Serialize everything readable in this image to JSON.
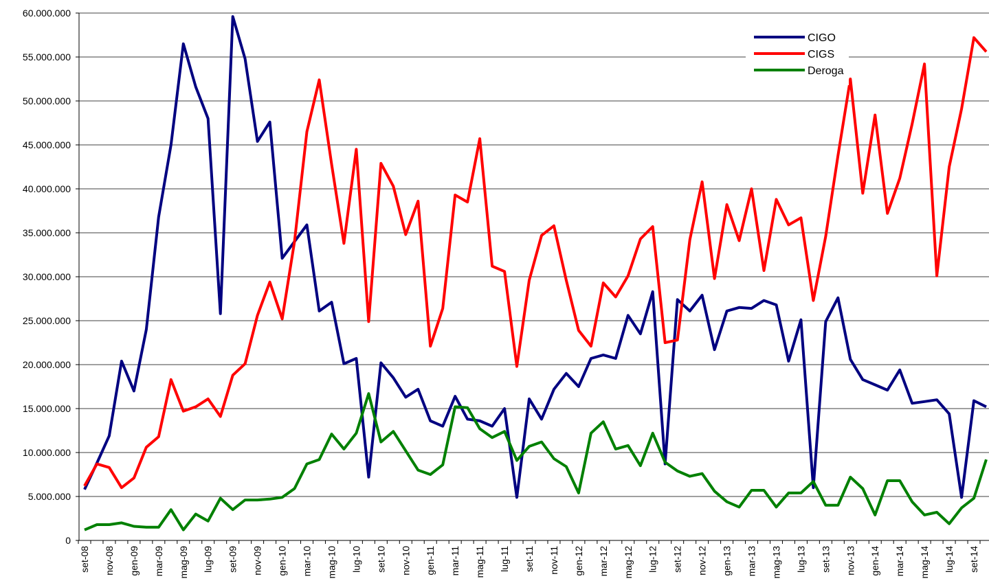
{
  "chart_data": {
    "type": "line",
    "categories": [
      "set-08",
      null,
      "nov-08",
      null,
      "gen-09",
      null,
      "mar-09",
      null,
      "mag-09",
      null,
      "lug-09",
      null,
      "set-09",
      null,
      "nov-09",
      null,
      "gen-10",
      null,
      "mar-10",
      null,
      "mag-10",
      null,
      "lug-10",
      null,
      "set-10",
      null,
      "nov-10",
      null,
      "gen-11",
      null,
      "mar-11",
      null,
      "mag-11",
      null,
      "lug-11",
      null,
      "set-11",
      null,
      "nov-11",
      null,
      "gen-12",
      null,
      "mar-12",
      null,
      "mag-12",
      null,
      "lug-12",
      null,
      "set-12",
      null,
      "nov-12",
      null,
      "gen-13",
      null,
      "mar-13",
      null,
      "mag-13",
      null,
      "lug-13",
      null,
      "set-13",
      null,
      "nov-13",
      null,
      "gen-14",
      null,
      "mar-14",
      null,
      "mag-14",
      null,
      "lug-14",
      null,
      "set-14",
      null
    ],
    "series": [
      {
        "name": "CIGO",
        "color": "#000080",
        "values": [
          5800000,
          8800000,
          11900000,
          20400000,
          17000000,
          24000000,
          36800000,
          45000000,
          56500000,
          51600000,
          48000000,
          25800000,
          59600000,
          54800000,
          45400000,
          47600000,
          32100000,
          34000000,
          35900000,
          26100000,
          27100000,
          20100000,
          20700000,
          7200000,
          20200000,
          18500000,
          16300000,
          17200000,
          13600000,
          13000000,
          16400000,
          13800000,
          13600000,
          13000000,
          15000000,
          4900000,
          16100000,
          13800000,
          17200000,
          19000000,
          17500000,
          20700000,
          21100000,
          20700000,
          25600000,
          23500000,
          28300000,
          8700000,
          27400000,
          26100000,
          27900000,
          21700000,
          26100000,
          26500000,
          26400000,
          27300000,
          26800000,
          20400000,
          25100000,
          6000000,
          24900000,
          27600000,
          20600000,
          18300000,
          17700000,
          17100000,
          19400000,
          15600000,
          15800000,
          16000000,
          14400000,
          4900000,
          15900000,
          15200000
        ]
      },
      {
        "name": "CIGS",
        "color": "#ff0000",
        "values": [
          6200000,
          8700000,
          8300000,
          6000000,
          7100000,
          10600000,
          11800000,
          18300000,
          14700000,
          15200000,
          16100000,
          14100000,
          18800000,
          20100000,
          25600000,
          29400000,
          25200000,
          34000000,
          46500000,
          52400000,
          42800000,
          33800000,
          44500000,
          24900000,
          42900000,
          40300000,
          34800000,
          38600000,
          22100000,
          26400000,
          39300000,
          38500000,
          45700000,
          31200000,
          30600000,
          19800000,
          29600000,
          34700000,
          35800000,
          29600000,
          23900000,
          22100000,
          29300000,
          27700000,
          30100000,
          34300000,
          35700000,
          22500000,
          22800000,
          34200000,
          40800000,
          29800000,
          38200000,
          34100000,
          40000000,
          30700000,
          38800000,
          35900000,
          36700000,
          27300000,
          34600000,
          43800000,
          52500000,
          39500000,
          48400000,
          37200000,
          41200000,
          47400000,
          54200000,
          30100000,
          42500000,
          49100000,
          57200000,
          55600000
        ]
      },
      {
        "name": "Deroga",
        "color": "#008000",
        "values": [
          1200000,
          1800000,
          1800000,
          2000000,
          1600000,
          1500000,
          1500000,
          3500000,
          1200000,
          3000000,
          2200000,
          4800000,
          3500000,
          4600000,
          4600000,
          4700000,
          4900000,
          5900000,
          8700000,
          9200000,
          12100000,
          10400000,
          12200000,
          16700000,
          11200000,
          12400000,
          10200000,
          8000000,
          7500000,
          8600000,
          15200000,
          15100000,
          12700000,
          11700000,
          12400000,
          9100000,
          10700000,
          11200000,
          9300000,
          8400000,
          5400000,
          12200000,
          13500000,
          10400000,
          10800000,
          8500000,
          12200000,
          8900000,
          7900000,
          7300000,
          7600000,
          5600000,
          4400000,
          3800000,
          5700000,
          5700000,
          3800000,
          5400000,
          5400000,
          6700000,
          4000000,
          4000000,
          7200000,
          5900000,
          2900000,
          6800000,
          6800000,
          4400000,
          2900000,
          3200000,
          1900000,
          3700000,
          4800000,
          9200000
        ]
      }
    ],
    "ylim": [
      0,
      60000000
    ],
    "yticks": [
      0,
      {
        "value": 5000000,
        "label": "5.000.000"
      },
      {
        "value": 10000000,
        "label": "10.000.000"
      },
      {
        "value": 15000000,
        "label": "15.000.000"
      },
      {
        "value": 20000000,
        "label": "20.000.000"
      },
      {
        "value": 25000000,
        "label": "25.000.000"
      },
      {
        "value": 30000000,
        "label": "30.000.000"
      },
      {
        "value": 35000000,
        "label": "35.000.000"
      },
      {
        "value": 40000000,
        "label": "40.000.000"
      },
      {
        "value": 45000000,
        "label": "45.000.000"
      },
      {
        "value": 50000000,
        "label": "50.000.000"
      },
      {
        "value": 55000000,
        "label": "55.000.000"
      },
      {
        "value": 60000000,
        "label": "60.000.000"
      }
    ],
    "grid": true,
    "legend": "top-right"
  }
}
